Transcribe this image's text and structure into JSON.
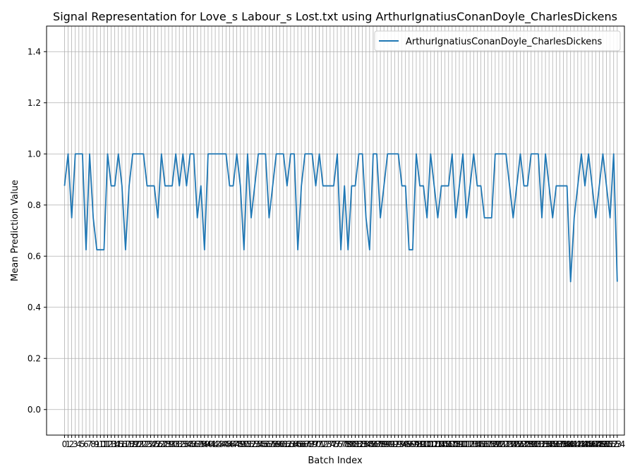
{
  "chart_data": {
    "type": "line",
    "title": "Signal Representation for Love_s Labour_s Lost.txt using ArthurIgnatiusConanDoyle_CharlesDickens",
    "xlabel": "Batch Index",
    "ylabel": "Mean Prediction Value",
    "xlim": [
      -5,
      156
    ],
    "ylim": [
      -0.1,
      1.5
    ],
    "yticks": [
      0.0,
      0.2,
      0.4,
      0.6,
      0.8,
      1.0,
      1.2,
      1.4
    ],
    "grid": true,
    "legend_position": "top-right",
    "series": [
      {
        "name": "ArthurIgnatiusConanDoyle_CharlesDickens",
        "color": "#1f77b4",
        "values": [
          0.875,
          1.0,
          0.75,
          1.0,
          1.0,
          1.0,
          0.625,
          1.0,
          0.75,
          0.625,
          0.625,
          0.625,
          1.0,
          0.875,
          0.875,
          1.0,
          0.875,
          0.625,
          0.875,
          1.0,
          1.0,
          1.0,
          1.0,
          0.875,
          0.875,
          0.875,
          0.75,
          1.0,
          0.875,
          0.875,
          0.875,
          1.0,
          0.875,
          1.0,
          0.875,
          1.0,
          1.0,
          0.75,
          0.875,
          0.625,
          1.0,
          1.0,
          1.0,
          1.0,
          1.0,
          1.0,
          0.875,
          0.875,
          1.0,
          0.875,
          0.625,
          1.0,
          0.75,
          0.875,
          1.0,
          1.0,
          1.0,
          0.75,
          0.875,
          1.0,
          1.0,
          1.0,
          0.875,
          1.0,
          1.0,
          0.625,
          0.875,
          1.0,
          1.0,
          1.0,
          0.875,
          1.0,
          0.875,
          0.875,
          0.875,
          0.875,
          1.0,
          0.625,
          0.875,
          0.625,
          0.875,
          0.875,
          1.0,
          1.0,
          0.75,
          0.625,
          1.0,
          1.0,
          0.75,
          0.875,
          1.0,
          1.0,
          1.0,
          1.0,
          0.875,
          0.875,
          0.625,
          0.625,
          1.0,
          0.875,
          0.875,
          0.75,
          1.0,
          0.875,
          0.75,
          0.875,
          0.875,
          0.875,
          1.0,
          0.75,
          0.875,
          1.0,
          0.75,
          0.875,
          1.0,
          0.875,
          0.875,
          0.75,
          0.75,
          0.75,
          1.0,
          1.0,
          1.0,
          1.0,
          0.875,
          0.75,
          0.875,
          1.0,
          0.875,
          0.875,
          1.0,
          1.0,
          1.0,
          0.75,
          1.0,
          0.875,
          0.75,
          0.875,
          0.875,
          0.875,
          0.875,
          0.5,
          0.75,
          0.875,
          1.0,
          0.875,
          1.0,
          0.875,
          0.75,
          0.875,
          1.0,
          0.875,
          0.75,
          1.0,
          0.5
        ]
      }
    ]
  }
}
